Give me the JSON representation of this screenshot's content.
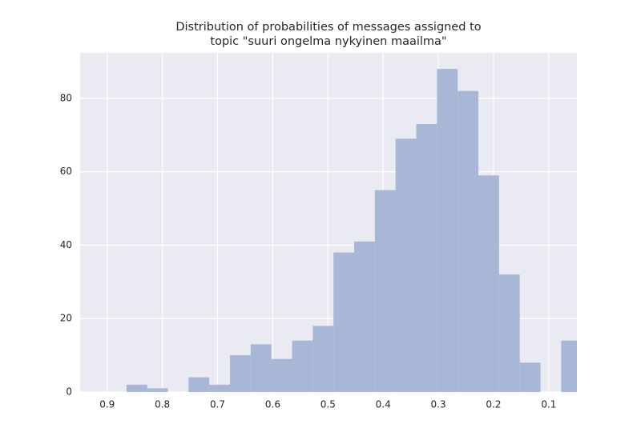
{
  "chart_data": {
    "type": "histogram",
    "title": [
      "Distribution of probabilities of messages assigned to",
      "topic \"suuri ongelma nykyinen maailma\""
    ],
    "bins": [
      0.04,
      0.0775,
      0.115,
      0.1525,
      0.19,
      0.2275,
      0.265,
      0.3025,
      0.34,
      0.3775,
      0.415,
      0.4525,
      0.49,
      0.5275,
      0.565,
      0.6025,
      0.64,
      0.6775,
      0.715,
      0.7525,
      0.79,
      0.8275,
      0.865
    ],
    "values": [
      14,
      0,
      8,
      32,
      59,
      82,
      88,
      73,
      69,
      55,
      41,
      38,
      18,
      14,
      9,
      13,
      10,
      2,
      4,
      0,
      1,
      2
    ],
    "color": "#a8b7d6",
    "xlim": [
      0.949,
      0.049
    ],
    "xticks": [
      0.9,
      0.8,
      0.7,
      0.6,
      0.5,
      0.4,
      0.3,
      0.2,
      0.1
    ],
    "ylim": [
      0,
      92.4
    ],
    "yticks": [
      0,
      20,
      40,
      60,
      80
    ],
    "grid": true
  }
}
